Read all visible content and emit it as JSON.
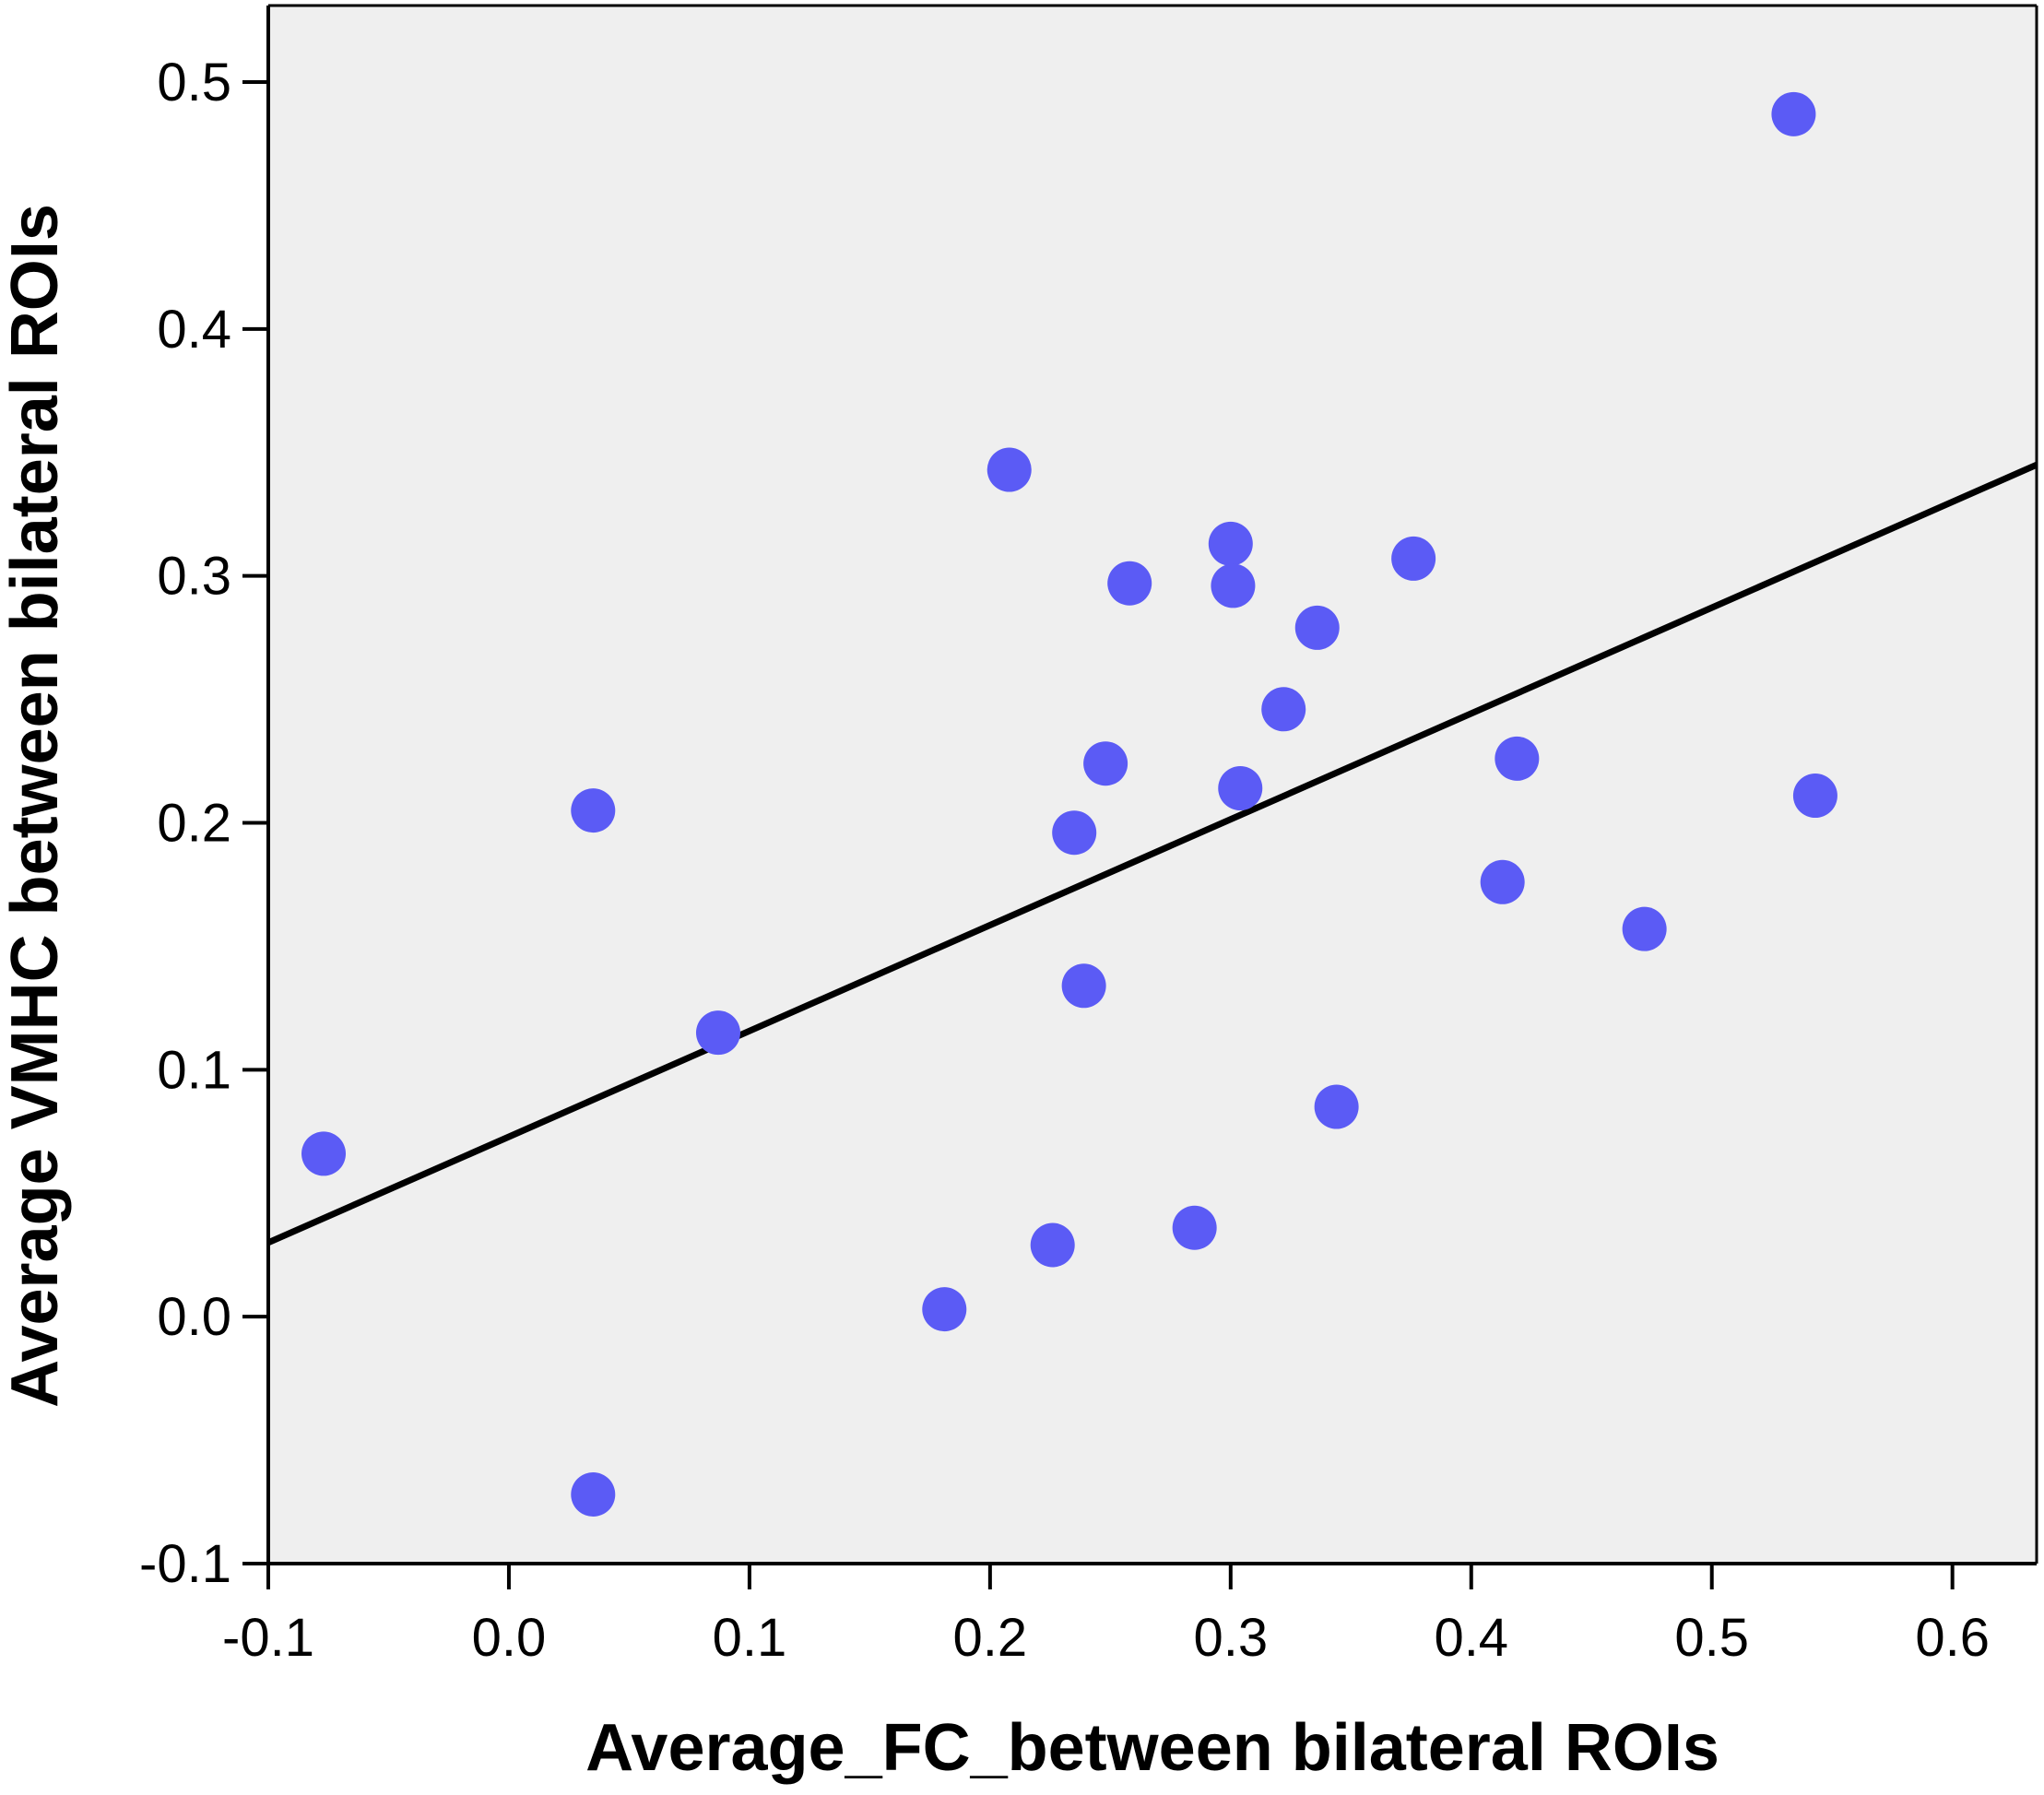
{
  "chart_data": {
    "type": "scatter",
    "title": "",
    "xlabel": "Average_FC_between bilateral ROIs",
    "ylabel": "Average VMHC between bilateral ROIs",
    "xlim": [
      -0.1,
      0.635
    ],
    "ylim": [
      -0.1,
      0.531
    ],
    "xticks": [
      -0.1,
      0.0,
      0.1,
      0.2,
      0.3,
      0.4,
      0.5,
      0.6
    ],
    "xtick_labels": [
      "-0.1",
      "0.0",
      "0.1",
      "0.2",
      "0.3",
      "0.4",
      "0.5",
      "0.6"
    ],
    "yticks": [
      -0.1,
      0.0,
      0.1,
      0.2,
      0.3,
      0.4,
      0.5
    ],
    "ytick_labels": [
      "-0.1",
      "0.0",
      "0.1",
      "0.2",
      "0.3",
      "0.4",
      "0.5"
    ],
    "grid": false,
    "colors": {
      "background": "#efefef",
      "points": "#5b5bf5",
      "fit_line": "#000000",
      "axes": "#000000"
    },
    "series": [
      {
        "name": "subjects",
        "x": [
          -0.077,
          0.035,
          0.035,
          0.087,
          0.181,
          0.208,
          0.226,
          0.235,
          0.239,
          0.248,
          0.258,
          0.285,
          0.3,
          0.301,
          0.304,
          0.322,
          0.336,
          0.344,
          0.376,
          0.413,
          0.419,
          0.472,
          0.534,
          0.543
        ],
        "y": [
          0.066,
          0.205,
          -0.072,
          0.115,
          0.003,
          0.343,
          0.029,
          0.196,
          0.134,
          0.224,
          0.297,
          0.036,
          0.313,
          0.296,
          0.214,
          0.246,
          0.279,
          0.085,
          0.307,
          0.176,
          0.226,
          0.157,
          0.487,
          0.211
        ]
      }
    ],
    "fit_line": {
      "x": [
        -0.1,
        0.635
      ],
      "y": [
        0.03,
        0.345
      ]
    }
  }
}
